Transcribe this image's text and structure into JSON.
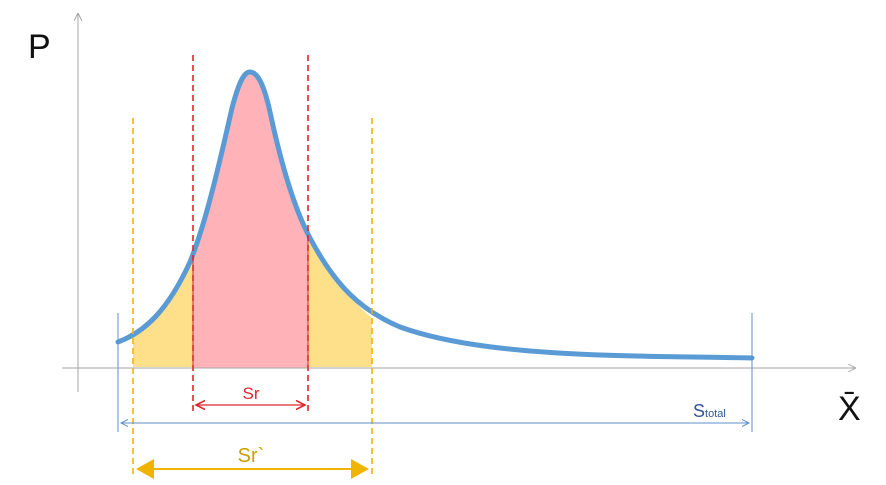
{
  "labels": {
    "y_axis": "P",
    "x_axis": "X̄",
    "sr": "Sr",
    "sr_prime": "Sr`",
    "s_total_main": "S",
    "s_total_sub": "total"
  },
  "colors": {
    "curve": "#5b9bd5",
    "sr_fill": "#ffb3b8",
    "sr_line": "#e3242b",
    "sr_prime_fill": "#ffe08a",
    "sr_prime_line": "#f0b400",
    "total_line": "#5b8fc9",
    "axis": "#a6a6a6"
  }
}
